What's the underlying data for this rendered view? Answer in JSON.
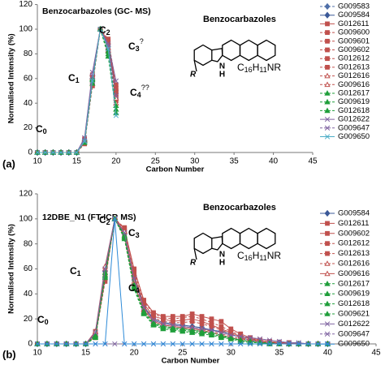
{
  "chart_data": [
    {
      "type": "line",
      "panel_label": "(a)",
      "title": "Benzocarbazoles (GC- MS)",
      "structure_label": "Benzocarbazoles",
      "formula": [
        "C",
        "16",
        "H",
        "11",
        "NR"
      ],
      "atom_labels": [
        "N",
        "H",
        "R"
      ],
      "x_label": "Carbon Number",
      "y_label": "Normalised Intensity (%)",
      "xlim": [
        10,
        45
      ],
      "xticks": [
        10,
        15,
        20,
        25,
        30,
        35,
        40,
        45
      ],
      "ylim": [
        0,
        120
      ],
      "yticks": [
        0,
        20,
        40,
        60,
        80,
        100,
        120
      ],
      "annotations": [
        {
          "text": "C",
          "sub": "0"
        },
        {
          "text": "C",
          "sub": "1"
        },
        {
          "text": "C",
          "sub": "2"
        },
        {
          "text": "C",
          "sub": "3",
          "sup": "?"
        },
        {
          "text": "C",
          "sub": "4",
          "sup": "??"
        }
      ],
      "x": [
        10,
        11,
        12,
        13,
        14,
        15,
        16,
        17,
        18,
        19,
        20
      ],
      "series": [
        {
          "name": "G009583",
          "color": "#4f6fa8",
          "marker": "diamond",
          "dash": true,
          "values": [
            0,
            0,
            0,
            0,
            0,
            0,
            10,
            62,
            100,
            88,
            50
          ]
        },
        {
          "name": "G009584",
          "color": "#3b5998",
          "marker": "diamond",
          "dash": false,
          "values": [
            0,
            0,
            0,
            0,
            0,
            0,
            9,
            60,
            100,
            86,
            48
          ]
        },
        {
          "name": "G012611",
          "color": "#c0504d",
          "marker": "square",
          "dash": false,
          "values": [
            0,
            0,
            0,
            0,
            0,
            0,
            8,
            58,
            100,
            90,
            52
          ]
        },
        {
          "name": "G009600",
          "color": "#c0504d",
          "marker": "square",
          "dash": true,
          "values": [
            0,
            0,
            0,
            0,
            0,
            0,
            10,
            60,
            100,
            84,
            45
          ]
        },
        {
          "name": "G009601",
          "color": "#c0504d",
          "marker": "square",
          "dash": true,
          "values": [
            0,
            0,
            0,
            0,
            0,
            0,
            11,
            63,
            100,
            82,
            42
          ]
        },
        {
          "name": "G009602",
          "color": "#c0504d",
          "marker": "square",
          "dash": true,
          "values": [
            0,
            0,
            0,
            0,
            0,
            0,
            9,
            57,
            100,
            87,
            47
          ]
        },
        {
          "name": "G012612",
          "color": "#c0504d",
          "marker": "square",
          "dash": true,
          "values": [
            0,
            0,
            0,
            0,
            0,
            0,
            8,
            55,
            100,
            92,
            55
          ]
        },
        {
          "name": "G012613",
          "color": "#c0504d",
          "marker": "square",
          "dash": true,
          "values": [
            0,
            0,
            0,
            0,
            0,
            0,
            7,
            54,
            100,
            89,
            50
          ]
        },
        {
          "name": "G012616",
          "color": "#c0504d",
          "marker": "triangle-open",
          "dash": true,
          "values": [
            0,
            0,
            0,
            0,
            0,
            0,
            10,
            61,
            100,
            85,
            44
          ]
        },
        {
          "name": "G009616",
          "color": "#c0504d",
          "marker": "triangle-open",
          "dash": true,
          "values": [
            0,
            0,
            0,
            0,
            0,
            0,
            11,
            64,
            100,
            83,
            40
          ]
        },
        {
          "name": "G012617",
          "color": "#1f9e3a",
          "marker": "triangle",
          "dash": true,
          "values": [
            0,
            0,
            0,
            0,
            0,
            0,
            9,
            59,
            100,
            80,
            35
          ]
        },
        {
          "name": "G009619",
          "color": "#1f9e3a",
          "marker": "triangle",
          "dash": true,
          "values": [
            0,
            0,
            0,
            0,
            0,
            0,
            10,
            60,
            100,
            82,
            38
          ]
        },
        {
          "name": "G012618",
          "color": "#1f9e3a",
          "marker": "triangle",
          "dash": true,
          "values": [
            0,
            0,
            0,
            0,
            0,
            0,
            8,
            56,
            100,
            78,
            32
          ]
        },
        {
          "name": "G012622",
          "color": "#8064a2",
          "marker": "x",
          "dash": false,
          "values": [
            0,
            0,
            0,
            0,
            0,
            0,
            12,
            65,
            100,
            88,
            58
          ]
        },
        {
          "name": "G009647",
          "color": "#8064a2",
          "marker": "x",
          "dash": true,
          "values": [
            0,
            0,
            0,
            0,
            0,
            0,
            10,
            62,
            100,
            86,
            46
          ]
        },
        {
          "name": "G009650",
          "color": "#4bacc6",
          "marker": "x",
          "dash": false,
          "values": [
            0,
            0,
            0,
            0,
            0,
            0,
            9,
            58,
            100,
            84,
            30
          ]
        }
      ]
    },
    {
      "type": "line",
      "panel_label": "(b)",
      "title": "12DBE_N1 (FT-ICR MS)",
      "structure_label": "Benzocarbazoles",
      "formula": [
        "C",
        "16",
        "H",
        "11",
        "NR"
      ],
      "atom_labels": [
        "N",
        "H",
        "R"
      ],
      "x_label": "Carbon Number",
      "y_label": "Normalised Intensity (%)",
      "xlim": [
        10,
        45
      ],
      "xticks": [
        10,
        15,
        20,
        25,
        30,
        35,
        40,
        45
      ],
      "ylim": [
        0,
        120
      ],
      "yticks": [
        0,
        20,
        40,
        60,
        80,
        100,
        120
      ],
      "annotations": [
        {
          "text": "C",
          "sub": "0"
        },
        {
          "text": "C",
          "sub": "1"
        },
        {
          "text": "C",
          "sub": "2"
        },
        {
          "text": "C",
          "sub": "3"
        },
        {
          "text": "C",
          "sub": "4"
        }
      ],
      "x": [
        10,
        11,
        12,
        13,
        14,
        15,
        16,
        17,
        18,
        19,
        20,
        21,
        22,
        23,
        24,
        25,
        26,
        27,
        28,
        29,
        30,
        31,
        32,
        33,
        34,
        35,
        36,
        37,
        38,
        39,
        40
      ],
      "series": [
        {
          "name": "G009584",
          "color": "#3b5998",
          "marker": "diamond",
          "dash": false,
          "values": [
            0,
            0,
            0,
            0,
            0,
            0,
            8,
            58,
            100,
            88,
            55,
            30,
            20,
            17,
            16,
            15,
            14,
            13,
            11,
            10,
            8,
            5,
            3,
            2,
            1,
            1,
            0,
            0,
            0,
            0,
            0
          ]
        },
        {
          "name": "G012611",
          "color": "#c0504d",
          "marker": "square",
          "dash": false,
          "values": [
            0,
            0,
            0,
            0,
            0,
            0,
            10,
            55,
            100,
            92,
            60,
            35,
            25,
            22,
            22,
            22,
            24,
            22,
            20,
            18,
            12,
            8,
            5,
            3,
            2,
            1,
            1,
            0,
            0,
            0,
            0
          ]
        },
        {
          "name": "G009602",
          "color": "#c0504d",
          "marker": "square",
          "dash": false,
          "values": [
            0,
            0,
            0,
            0,
            0,
            0,
            6,
            52,
            100,
            90,
            55,
            32,
            22,
            20,
            18,
            19,
            20,
            18,
            15,
            12,
            9,
            6,
            4,
            2,
            1,
            1,
            0,
            0,
            0,
            0,
            0
          ]
        },
        {
          "name": "G012612",
          "color": "#c0504d",
          "marker": "square",
          "dash": true,
          "values": [
            0,
            0,
            0,
            0,
            0,
            0,
            7,
            55,
            100,
            93,
            58,
            34,
            24,
            21,
            20,
            21,
            22,
            20,
            17,
            14,
            10,
            7,
            4,
            3,
            2,
            1,
            1,
            0,
            0,
            0,
            0
          ]
        },
        {
          "name": "G012613",
          "color": "#c0504d",
          "marker": "square",
          "dash": true,
          "values": [
            0,
            0,
            0,
            0,
            0,
            0,
            5,
            50,
            100,
            88,
            52,
            30,
            21,
            18,
            17,
            17,
            18,
            16,
            14,
            11,
            8,
            5,
            3,
            2,
            1,
            1,
            0,
            0,
            0,
            0,
            0
          ]
        },
        {
          "name": "G012616",
          "color": "#c0504d",
          "marker": "triangle-open",
          "dash": true,
          "values": [
            0,
            0,
            0,
            0,
            0,
            0,
            8,
            60,
            100,
            90,
            50,
            28,
            19,
            16,
            15,
            14,
            13,
            12,
            10,
            8,
            6,
            4,
            3,
            2,
            1,
            0,
            0,
            0,
            0,
            0,
            0
          ]
        },
        {
          "name": "G009616",
          "color": "#c0504d",
          "marker": "triangle-open",
          "dash": false,
          "values": [
            0,
            0,
            0,
            0,
            0,
            0,
            10,
            62,
            100,
            86,
            48,
            27,
            18,
            15,
            14,
            13,
            12,
            11,
            9,
            7,
            5,
            3,
            2,
            1,
            1,
            0,
            0,
            0,
            0,
            0,
            0
          ]
        },
        {
          "name": "G012617",
          "color": "#1f9e3a",
          "marker": "triangle",
          "dash": true,
          "values": [
            0,
            0,
            0,
            0,
            0,
            0,
            6,
            55,
            100,
            85,
            45,
            25,
            16,
            13,
            12,
            11,
            10,
            9,
            8,
            6,
            4,
            3,
            2,
            1,
            1,
            0,
            0,
            0,
            0,
            0,
            0
          ]
        },
        {
          "name": "G009619",
          "color": "#1f9e3a",
          "marker": "triangle",
          "dash": true,
          "values": [
            0,
            0,
            0,
            0,
            0,
            0,
            7,
            57,
            100,
            87,
            47,
            26,
            17,
            14,
            13,
            12,
            11,
            10,
            9,
            7,
            5,
            3,
            2,
            1,
            0,
            0,
            0,
            0,
            0,
            0,
            0
          ]
        },
        {
          "name": "G012618",
          "color": "#1f9e3a",
          "marker": "triangle",
          "dash": true,
          "values": [
            0,
            0,
            0,
            0,
            0,
            0,
            5,
            53,
            100,
            84,
            44,
            24,
            15,
            12,
            11,
            10,
            9,
            8,
            7,
            5,
            4,
            2,
            1,
            1,
            0,
            0,
            0,
            0,
            0,
            0,
            0
          ]
        },
        {
          "name": "G009621",
          "color": "#1f9e3a",
          "marker": "triangle",
          "dash": true,
          "values": [
            0,
            0,
            0,
            0,
            0,
            0,
            6,
            54,
            100,
            86,
            46,
            25,
            16,
            14,
            13,
            12,
            11,
            10,
            8,
            6,
            5,
            3,
            2,
            1,
            0,
            0,
            0,
            0,
            0,
            0,
            0
          ]
        },
        {
          "name": "G012622",
          "color": "#8064a2",
          "marker": "x",
          "dash": false,
          "values": [
            0,
            0,
            0,
            0,
            0,
            0,
            9,
            60,
            100,
            89,
            52,
            29,
            19,
            16,
            15,
            14,
            13,
            12,
            11,
            9,
            7,
            6,
            5,
            4,
            3,
            2,
            1,
            1,
            0,
            0,
            0
          ]
        },
        {
          "name": "G009647",
          "color": "#8064a2",
          "marker": "x",
          "dash": true,
          "values": [
            0,
            0,
            0,
            0,
            0,
            0,
            0,
            0,
            0,
            0,
            0,
            0,
            0,
            0,
            0,
            0,
            0,
            0,
            0,
            0,
            0,
            0,
            0,
            0,
            0,
            0,
            0,
            0,
            0,
            0,
            0
          ]
        },
        {
          "name": "G009650",
          "color": "#2e8bd8",
          "marker": "x",
          "dash": false,
          "values": [
            0,
            0,
            0,
            0,
            0,
            0,
            0,
            0,
            100,
            0,
            0,
            0,
            0,
            0,
            0,
            0,
            0,
            0,
            0,
            0,
            0,
            0,
            0,
            0,
            0,
            0,
            0,
            0,
            0,
            0,
            0
          ]
        }
      ]
    }
  ]
}
